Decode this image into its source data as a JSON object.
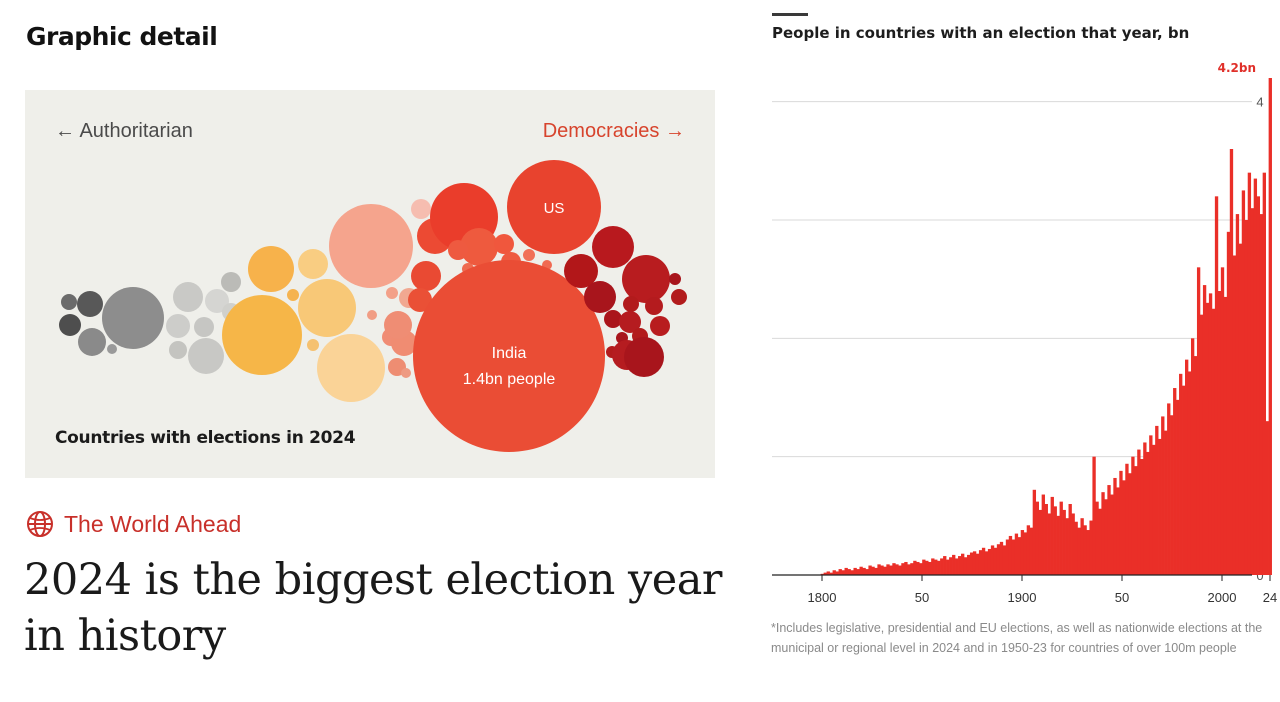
{
  "section": {
    "title": "Graphic detail"
  },
  "bubbles": {
    "left_label": "← Authoritarian",
    "right_label": "Democracies →",
    "caption": "Countries with elections in 2024",
    "india_name": "India",
    "india_detail": "1.4bn people",
    "us_label": "US",
    "colors": {
      "authoritarian": "#6e6e6e",
      "hybrid": "#f5b24a",
      "flawed_democracy": "#f0573d",
      "full_democracy": "#a8151c"
    }
  },
  "article": {
    "kicker": "The World Ahead",
    "headline": "2024 is the biggest election year in history"
  },
  "chart_data": {
    "type": "bar",
    "title": "People in countries with an election that year, bn",
    "x_tick_labels": [
      "1800",
      "50",
      "1900",
      "50",
      "2000",
      "24"
    ],
    "x_tick_years": [
      1800,
      1850,
      1900,
      1950,
      2000,
      2024
    ],
    "y_ticks": [
      0,
      1,
      2,
      3,
      4
    ],
    "ylim": [
      0,
      4.2
    ],
    "xlim": [
      1800,
      2024
    ],
    "highlight_label": "4.2bn",
    "color": "#ea2f28",
    "footnote": "*Includes legislative, presidential and EU elections, as well as nationwide elections at the municipal or regional level in 2024 and in 1950-23 for countries of over 100m people",
    "keyframes": [
      [
        1800,
        0.0
      ],
      [
        1810,
        0.02
      ],
      [
        1820,
        0.04
      ],
      [
        1830,
        0.06
      ],
      [
        1840,
        0.08
      ],
      [
        1850,
        0.09
      ],
      [
        1860,
        0.1
      ],
      [
        1870,
        0.12
      ],
      [
        1880,
        0.14
      ],
      [
        1890,
        0.17
      ],
      [
        1900,
        0.2
      ],
      [
        1905,
        0.24
      ],
      [
        1910,
        0.3
      ],
      [
        1915,
        0.35
      ],
      [
        1919,
        0.45
      ],
      [
        1920,
        0.7
      ],
      [
        1925,
        0.6
      ],
      [
        1930,
        0.65
      ],
      [
        1935,
        0.55
      ],
      [
        1940,
        0.4
      ],
      [
        1945,
        0.45
      ],
      [
        1946,
        1.0
      ],
      [
        1950,
        0.55
      ],
      [
        1955,
        0.75
      ],
      [
        1960,
        0.85
      ],
      [
        1965,
        0.95
      ],
      [
        1970,
        1.05
      ],
      [
        1975,
        1.15
      ],
      [
        1980,
        1.3
      ],
      [
        1985,
        1.6
      ],
      [
        1990,
        1.8
      ],
      [
        1994,
        2.6
      ],
      [
        2000,
        2.4
      ],
      [
        2004,
        3.2
      ],
      [
        2009,
        3.6
      ],
      [
        2014,
        3.4
      ],
      [
        2019,
        3.4
      ],
      [
        2023,
        1.3
      ],
      [
        2024,
        4.2
      ]
    ],
    "values": [
      0.01,
      0.02,
      0.03,
      0.02,
      0.04,
      0.03,
      0.05,
      0.04,
      0.06,
      0.05,
      0.04,
      0.06,
      0.05,
      0.07,
      0.06,
      0.05,
      0.08,
      0.07,
      0.06,
      0.09,
      0.08,
      0.07,
      0.09,
      0.08,
      0.1,
      0.09,
      0.08,
      0.1,
      0.11,
      0.09,
      0.1,
      0.12,
      0.11,
      0.1,
      0.13,
      0.12,
      0.11,
      0.14,
      0.13,
      0.12,
      0.14,
      0.16,
      0.13,
      0.15,
      0.17,
      0.14,
      0.16,
      0.18,
      0.15,
      0.17,
      0.19,
      0.2,
      0.18,
      0.21,
      0.23,
      0.2,
      0.22,
      0.25,
      0.23,
      0.26,
      0.28,
      0.25,
      0.3,
      0.33,
      0.3,
      0.35,
      0.32,
      0.38,
      0.36,
      0.42,
      0.4,
      0.72,
      0.62,
      0.55,
      0.68,
      0.6,
      0.52,
      0.66,
      0.58,
      0.5,
      0.62,
      0.55,
      0.48,
      0.6,
      0.52,
      0.45,
      0.4,
      0.48,
      0.42,
      0.38,
      0.46,
      1.0,
      0.62,
      0.56,
      0.7,
      0.64,
      0.76,
      0.68,
      0.82,
      0.74,
      0.88,
      0.8,
      0.94,
      0.86,
      1.0,
      0.92,
      1.06,
      0.98,
      1.12,
      1.04,
      1.18,
      1.1,
      1.26,
      1.15,
      1.34,
      1.22,
      1.45,
      1.35,
      1.58,
      1.48,
      1.7,
      1.6,
      1.82,
      1.72,
      2.0,
      1.85,
      2.6,
      2.2,
      2.45,
      2.3,
      2.38,
      2.25,
      3.2,
      2.4,
      2.6,
      2.35,
      2.9,
      3.6,
      2.7,
      3.05,
      2.8,
      3.25,
      3.0,
      3.4,
      3.1,
      3.35,
      3.2,
      3.05,
      3.4,
      1.3,
      4.2
    ]
  }
}
